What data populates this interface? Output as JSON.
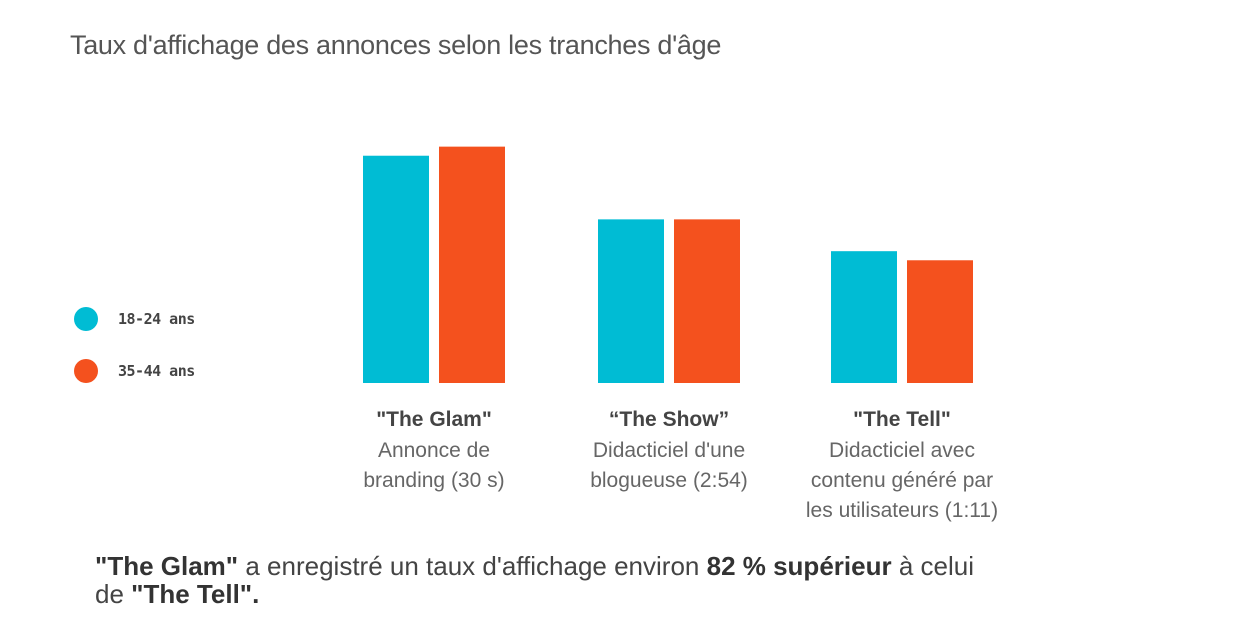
{
  "title": "Taux d'affichage des annonces selon les tranches d'âge",
  "colors": {
    "series1": "#00bcd4",
    "series2": "#f4511e"
  },
  "legend": [
    {
      "label": "18-24 ans",
      "color": "#00bcd4"
    },
    {
      "label": "35-44 ans",
      "color": "#f4511e"
    }
  ],
  "chart_data": {
    "type": "bar",
    "title": "Taux d'affichage des annonces selon les tranches d'âge",
    "categories": [
      "\"The Glam\"",
      "“The Show”",
      "\"The Tell\""
    ],
    "category_descriptions": [
      [
        "Annonce de",
        "branding (30 s)"
      ],
      [
        "Didacticiel d'une",
        "blogueuse (2:54)"
      ],
      [
        "Didacticiel avec",
        "contenu généré par",
        "les utilisateurs (1:11)"
      ]
    ],
    "series": [
      {
        "name": "18-24 ans",
        "values": [
          100,
          72,
          58
        ]
      },
      {
        "name": "35-44 ans",
        "values": [
          104,
          72,
          54
        ]
      }
    ],
    "ylim": [
      0,
      110
    ],
    "grid": false,
    "legend_position": "left"
  },
  "note": {
    "part1": "\"The Glam\"",
    "part2": " a enregistré un taux d'affichage environ ",
    "part3": "82 % supérieur",
    "part4": " à celui",
    "part5": "de ",
    "part6": "\"The Tell\"."
  }
}
